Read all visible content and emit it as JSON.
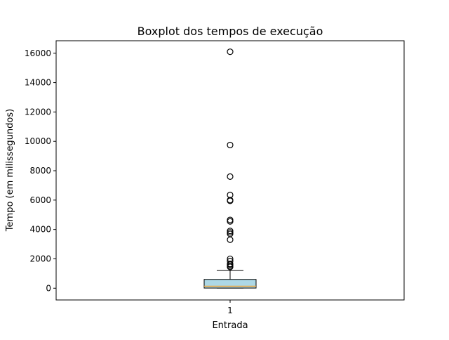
{
  "chart_data": {
    "type": "boxplot",
    "title": "Boxplot dos tempos de execução",
    "xlabel": "Entrada",
    "ylabel": "Tempo (em milissegundos)",
    "categories": [
      "1"
    ],
    "ylim": [
      -800,
      16850
    ],
    "yticks": [
      0,
      2000,
      4000,
      6000,
      8000,
      10000,
      12000,
      14000,
      16000
    ],
    "grid": false,
    "box": {
      "whisker_low": 5,
      "q1": 10,
      "median": 130,
      "q3": 600,
      "whisker_high": 1200
    },
    "outliers": [
      1450,
      1500,
      1600,
      1650,
      1850,
      2000,
      3300,
      3700,
      3800,
      3900,
      4550,
      4650,
      5950,
      6000,
      6350,
      7600,
      9750,
      16100
    ],
    "colors": {
      "box_fill": "#add8e6",
      "box_edge": "#000000",
      "median": "#e8a33d",
      "whisker": "#000000",
      "outlier_edge": "#000000"
    }
  }
}
